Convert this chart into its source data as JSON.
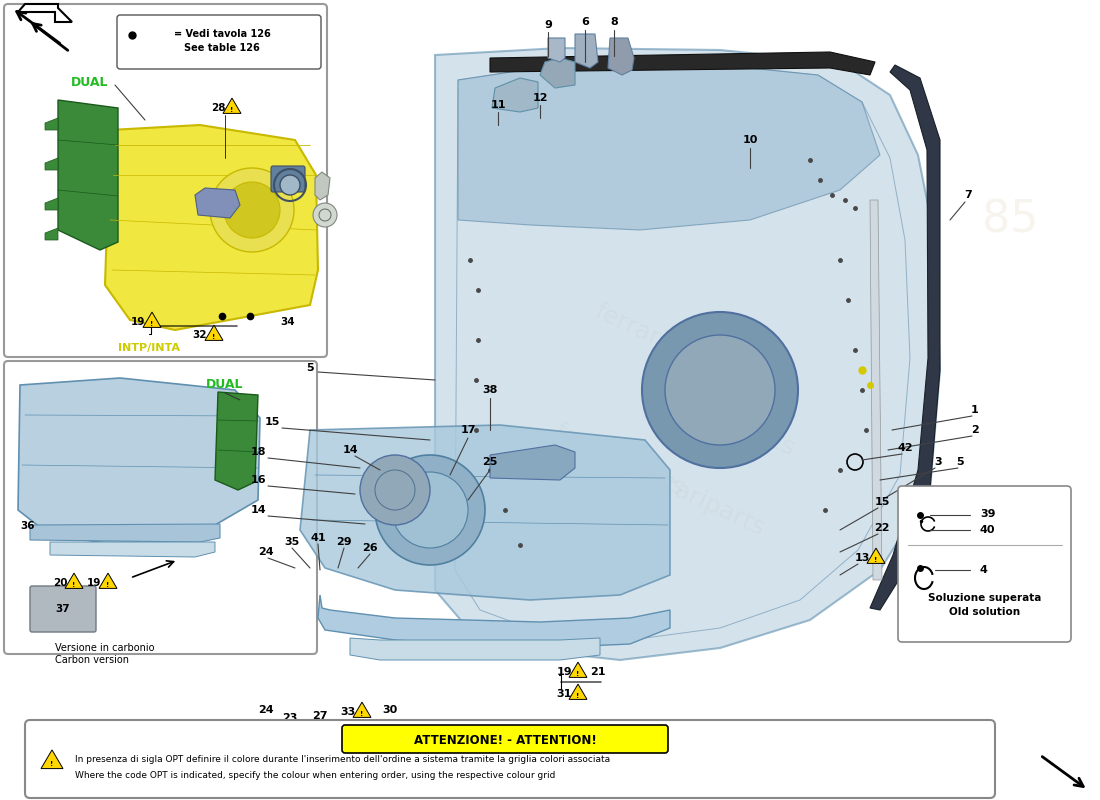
{
  "bg_color": "#ffffff",
  "door_blue": "#b8d0e0",
  "door_blue_dark": "#8aacbf",
  "door_blue_edge": "#6090b0",
  "yellow_fill": "#f0e840",
  "yellow_edge": "#c8b800",
  "green_fill": "#3a8a3a",
  "green_edge": "#1a5a1a",
  "attention_bg": "#ffff00",
  "attention_title": "ATTENZIONE! - ATTENTION!",
  "attention_line1": "In presenza di sigla OPT definire il colore durante l'inserimento dell'ordine a sistema tramite la griglia colori associata",
  "attention_line2": "Where the code OPT is indicated, specify the colour when entering order, using the respective colour grid",
  "old_solution_text1": "Soluzione superata",
  "old_solution_text2": "Old solution",
  "legend_line1": "● = Vedi tavola 126",
  "legend_line2": "  See table 126",
  "dual_color": "#22bb22",
  "intp_color": "#cccc00",
  "label_intp": "INTP/INTA",
  "label_dual": "DUAL",
  "label_carbon1": "Versione in carbonio",
  "label_carbon2": "Carbon version",
  "wmark_color": "#c8b888",
  "wmark_alpha": 0.18
}
